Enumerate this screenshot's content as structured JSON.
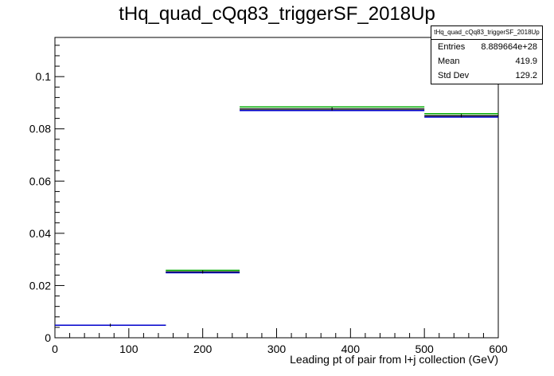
{
  "chart_data": {
    "type": "histogram",
    "title": "tHq_quad_cQq83_triggerSF_2018Up",
    "xlabel": "Leading pt of pair from l+j collection (GeV)",
    "ylabel": "",
    "xlim": [
      0,
      600
    ],
    "ylim": [
      0,
      0.115
    ],
    "x_ticks": [
      0,
      100,
      200,
      300,
      400,
      500,
      600
    ],
    "y_ticks": [
      0,
      0.02,
      0.04,
      0.06,
      0.08,
      0.1
    ],
    "y_tick_labels": [
      "0",
      "0.02",
      "0.04",
      "0.06",
      "0.08",
      "0.1"
    ],
    "bins": [
      {
        "low": 0,
        "high": 150
      },
      {
        "low": 150,
        "high": 250
      },
      {
        "low": 250,
        "high": 500
      },
      {
        "low": 500,
        "high": 600
      }
    ],
    "series": [
      {
        "color": "#00aa00",
        "values": [
          0.0048,
          0.0258,
          0.0884,
          0.0858
        ]
      },
      {
        "color": "#000000",
        "values": [
          0.0048,
          0.0252,
          0.0876,
          0.085
        ]
      },
      {
        "color": "#0000cc",
        "values": [
          0.0048,
          0.0249,
          0.087,
          0.0845
        ]
      }
    ],
    "stats": {
      "title": "tHq_quad_cQq83_triggerSF_2018Up",
      "rows": [
        {
          "label": "Entries",
          "value": "8.889664e+28"
        },
        {
          "label": "Mean",
          "value": "419.9"
        },
        {
          "label": "Std Dev",
          "value": "129.2"
        }
      ]
    },
    "grid": false,
    "legend": "top-right stats box"
  }
}
